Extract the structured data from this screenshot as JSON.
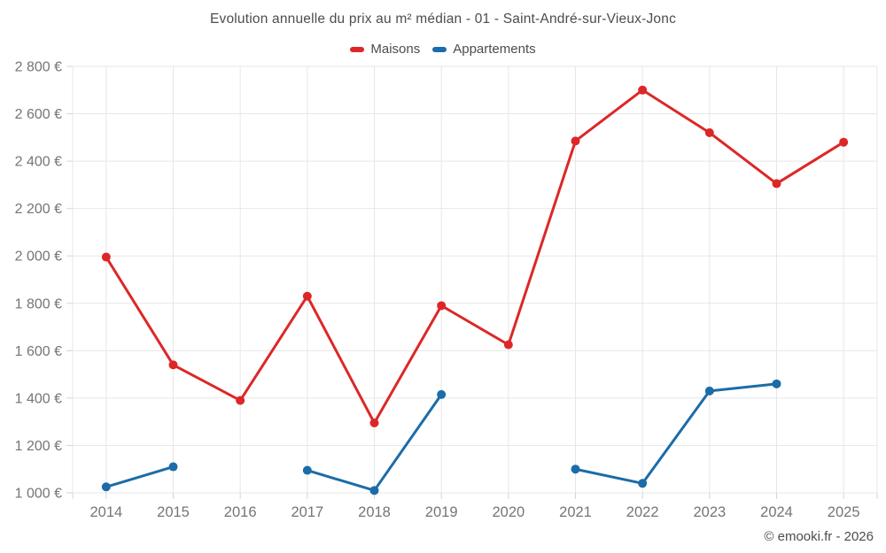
{
  "header": {
    "title": "Evolution annuelle du prix au m² médian - 01 - Saint-André-sur-Vieux-Jonc"
  },
  "footer": {
    "credit": "© emooki.fr - 2026"
  },
  "colors": {
    "maisons": "#dd2727",
    "appartements": "#1b6ca8",
    "grid": "#e7e7e7",
    "tick": "#d6d6d6",
    "axis_text": "#757575",
    "heading_text": "#4d4d4d"
  },
  "chart_data": {
    "type": "line",
    "title": "Evolution annuelle du prix au m² médian - 01 - Saint-André-sur-Vieux-Jonc",
    "categories": [
      "2014",
      "2015",
      "2016",
      "2017",
      "2018",
      "2019",
      "2020",
      "2021",
      "2022",
      "2023",
      "2024",
      "2025"
    ],
    "series": [
      {
        "name": "Maisons",
        "color": "#dd2727",
        "values": [
          1995,
          1540,
          1390,
          1830,
          1295,
          1790,
          1625,
          2485,
          2700,
          2520,
          2305,
          2480
        ]
      },
      {
        "name": "Appartements",
        "color": "#1b6ca8",
        "values": [
          1025,
          1110,
          null,
          1095,
          1010,
          1415,
          null,
          1100,
          1040,
          1430,
          1460,
          null
        ]
      }
    ],
    "xlabel": "",
    "ylabel": "",
    "ylim": [
      1000,
      2800
    ],
    "ytick_step": 200,
    "ytick_values": [
      1000,
      1200,
      1400,
      1600,
      1800,
      2000,
      2200,
      2400,
      2600,
      2800
    ],
    "ytick_labels": [
      "1 000 €",
      "1 200 €",
      "1 400 €",
      "1 600 €",
      "1 800 €",
      "2 000 €",
      "2 200 €",
      "2 400 €",
      "2 600 €",
      "2 800 €"
    ],
    "grid": true,
    "legend_position": "top"
  }
}
